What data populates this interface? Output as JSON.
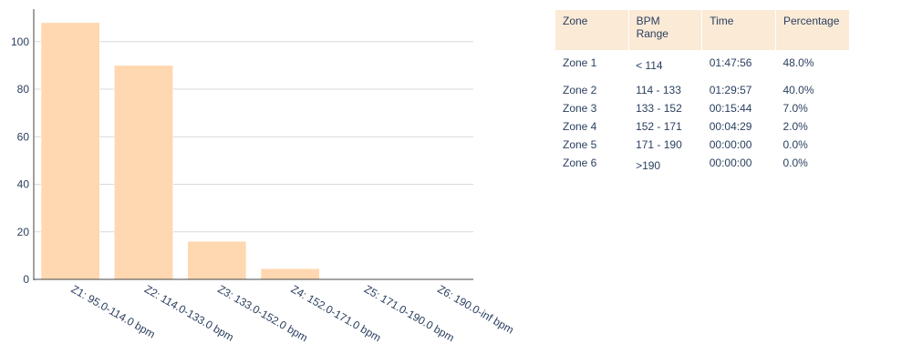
{
  "chart_data": {
    "type": "bar",
    "categories": [
      "Z1: 95.0-114.0 bpm",
      "Z2: 114.0-133.0 bpm",
      "Z3: 133.0-152.0 bpm",
      "Z4: 152.0-171.0 bpm",
      "Z5: 171.0-190.0 bpm",
      "Z6: 190.0-inf bpm"
    ],
    "values": [
      108,
      90,
      16,
      4.5,
      0,
      0
    ],
    "title": "",
    "xlabel": "",
    "ylabel": "",
    "ylim": [
      0,
      113.7
    ],
    "yticks": [
      0,
      20,
      40,
      60,
      80,
      100
    ],
    "grid": true,
    "bar_color": "#ffd7b0",
    "grid_color": "#d9d9d9"
  },
  "table": {
    "headers": {
      "zone": "Zone",
      "bpm_range_line1": "BPM",
      "bpm_range_line2": "Range",
      "time": "Time",
      "percentage": "Percentage"
    },
    "rows": [
      {
        "zone": "Zone 1",
        "bpm": "< 114",
        "time": "01:47:56",
        "pct": "48.0%"
      },
      {
        "zone": "Zone 2",
        "bpm": "114 - 133",
        "time": "01:29:57",
        "pct": "40.0%"
      },
      {
        "zone": "Zone 3",
        "bpm": "133 - 152",
        "time": "00:15:44",
        "pct": "7.0%"
      },
      {
        "zone": "Zone 4",
        "bpm": "152 - 171",
        "time": "00:04:29",
        "pct": "2.0%"
      },
      {
        "zone": "Zone 5",
        "bpm": "171 - 190",
        "time": "00:00:00",
        "pct": "0.0%"
      },
      {
        "zone": "Zone 6",
        "bpm": ">190",
        "time": "00:00:00",
        "pct": "0.0%"
      }
    ],
    "header_color": "#fbead6"
  }
}
